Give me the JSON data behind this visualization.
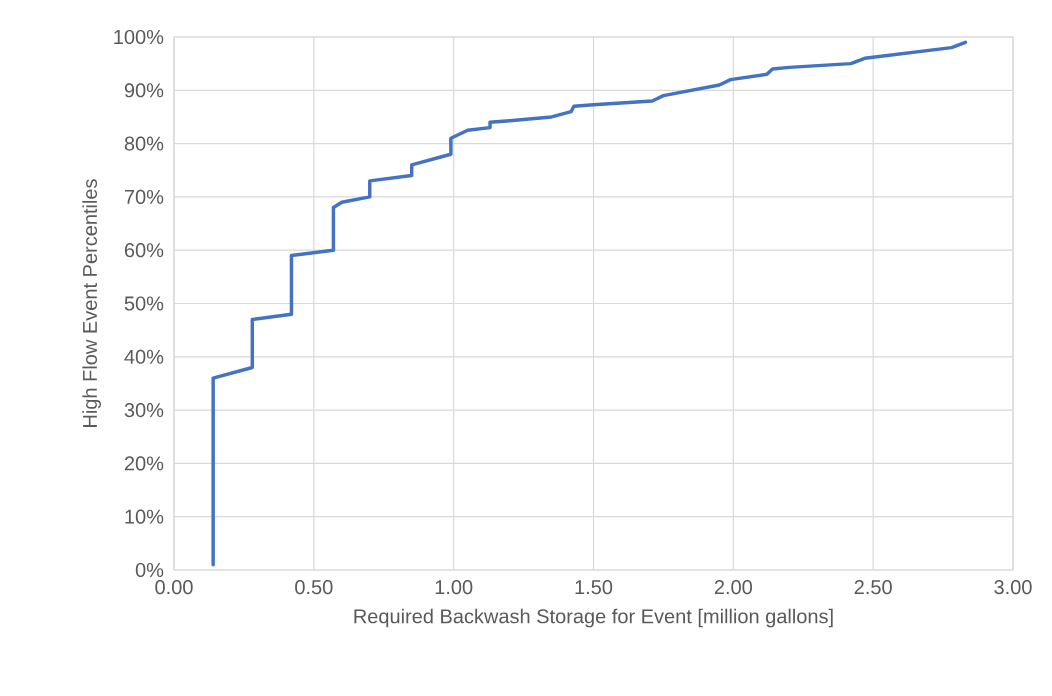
{
  "chart_data": {
    "type": "line",
    "xlabel": "Required Backwash Storage for Event [million gallons]",
    "ylabel": "High Flow Event Percentiles",
    "xlim": [
      0,
      3
    ],
    "ylim": [
      0,
      100
    ],
    "xticks": [
      {
        "value": 0,
        "label": "0.00"
      },
      {
        "value": 0.5,
        "label": "0.50"
      },
      {
        "value": 1,
        "label": "1.00"
      },
      {
        "value": 1.5,
        "label": "1.50"
      },
      {
        "value": 2,
        "label": "2.00"
      },
      {
        "value": 2.5,
        "label": "2.50"
      },
      {
        "value": 3,
        "label": "3.00"
      }
    ],
    "yticks": [
      {
        "value": 0,
        "label": "0%"
      },
      {
        "value": 10,
        "label": "10%"
      },
      {
        "value": 20,
        "label": "20%"
      },
      {
        "value": 30,
        "label": "30%"
      },
      {
        "value": 40,
        "label": "40%"
      },
      {
        "value": 50,
        "label": "50%"
      },
      {
        "value": 60,
        "label": "60%"
      },
      {
        "value": 70,
        "label": "70%"
      },
      {
        "value": 80,
        "label": "80%"
      },
      {
        "value": 90,
        "label": "90%"
      },
      {
        "value": 100,
        "label": "100%"
      }
    ],
    "grid": true,
    "legend": false,
    "marker": "none",
    "line_style": "solid",
    "series": [
      {
        "color": "#4472c4",
        "x": [
          0.14,
          0.14,
          0.28,
          0.28,
          0.42,
          0.42,
          0.57,
          0.57,
          0.6,
          0.7,
          0.7,
          0.85,
          0.85,
          0.99,
          0.99,
          1.05,
          1.13,
          1.13,
          1.2,
          1.35,
          1.42,
          1.43,
          1.5,
          1.71,
          1.75,
          1.95,
          1.99,
          2.12,
          2.14,
          2.2,
          2.42,
          2.47,
          2.78,
          2.83
        ],
        "values": [
          1,
          36,
          38,
          47,
          48,
          59,
          60,
          68,
          69,
          70,
          73,
          74,
          76,
          78,
          81,
          82.5,
          83,
          84,
          84.3,
          85,
          86,
          87,
          87.3,
          88,
          89,
          91,
          92,
          93,
          94,
          94.3,
          95,
          96,
          98,
          99
        ]
      }
    ]
  }
}
